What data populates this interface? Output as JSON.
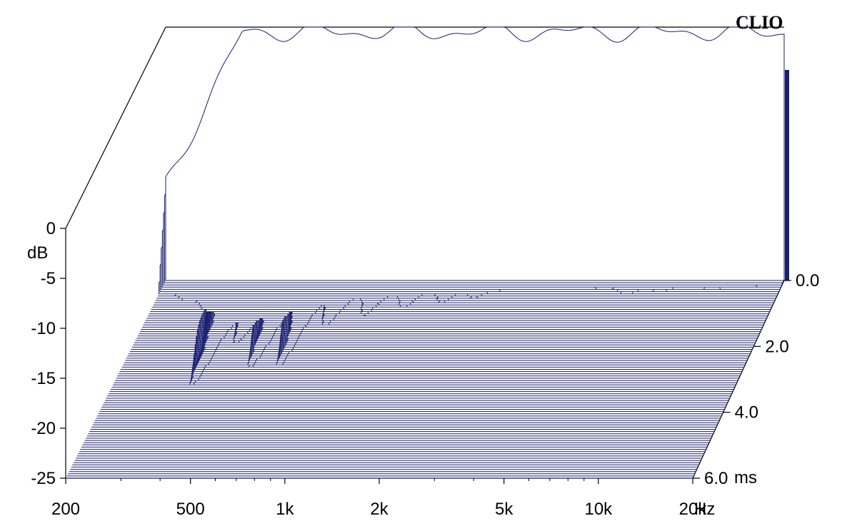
{
  "brand": {
    "logo_text": "CLIO"
  },
  "colors": {
    "trace": "#1a1f6e",
    "frame": "#000000",
    "background": "#ffffff"
  },
  "chart_data": {
    "type": "waterfall",
    "x_axis": {
      "scale": "log",
      "range_hz": [
        200,
        20000
      ],
      "tick_labels": [
        "200",
        "500",
        "1k",
        "2k",
        "5k",
        "10k",
        "20k"
      ],
      "tick_values_hz": [
        200,
        500,
        1000,
        2000,
        5000,
        10000,
        20000
      ],
      "unit": "Hz"
    },
    "y_axis": {
      "range_db": [
        -25,
        0
      ],
      "tick_labels": [
        "0",
        "-5",
        "-10",
        "-15",
        "-20",
        "-25"
      ],
      "tick_values_db": [
        0,
        -5,
        -10,
        -15,
        -20,
        -25
      ],
      "unit": "dB"
    },
    "z_axis": {
      "range_ms": [
        0,
        6
      ],
      "tick_labels": [
        "0.0",
        "2.0",
        "4.0",
        "6.0"
      ],
      "tick_values_ms": [
        0,
        2,
        4,
        6
      ],
      "unit": "ms"
    },
    "grid": false,
    "slices": 90
  }
}
